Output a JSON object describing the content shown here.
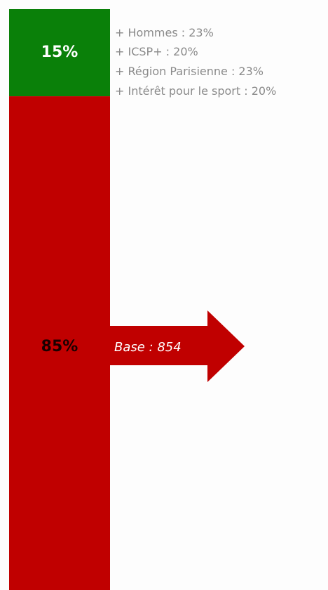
{
  "chart_data": {
    "type": "bar",
    "stacked": true,
    "series": [
      {
        "value": 15,
        "label": "15%",
        "color": "#0a8009",
        "label_color": "#ffffff"
      },
      {
        "value": 85,
        "label": "85%",
        "color": "#c00000",
        "label_color": "#1a0000"
      }
    ],
    "details": [
      "+ Hommes : 23%",
      "+ ICSP+ : 20%",
      "+ Région Parisienne : 23%",
      "+ Intérêt pour le sport : 20%"
    ],
    "base": {
      "label": "Base : 854",
      "color": "#c00000"
    }
  }
}
